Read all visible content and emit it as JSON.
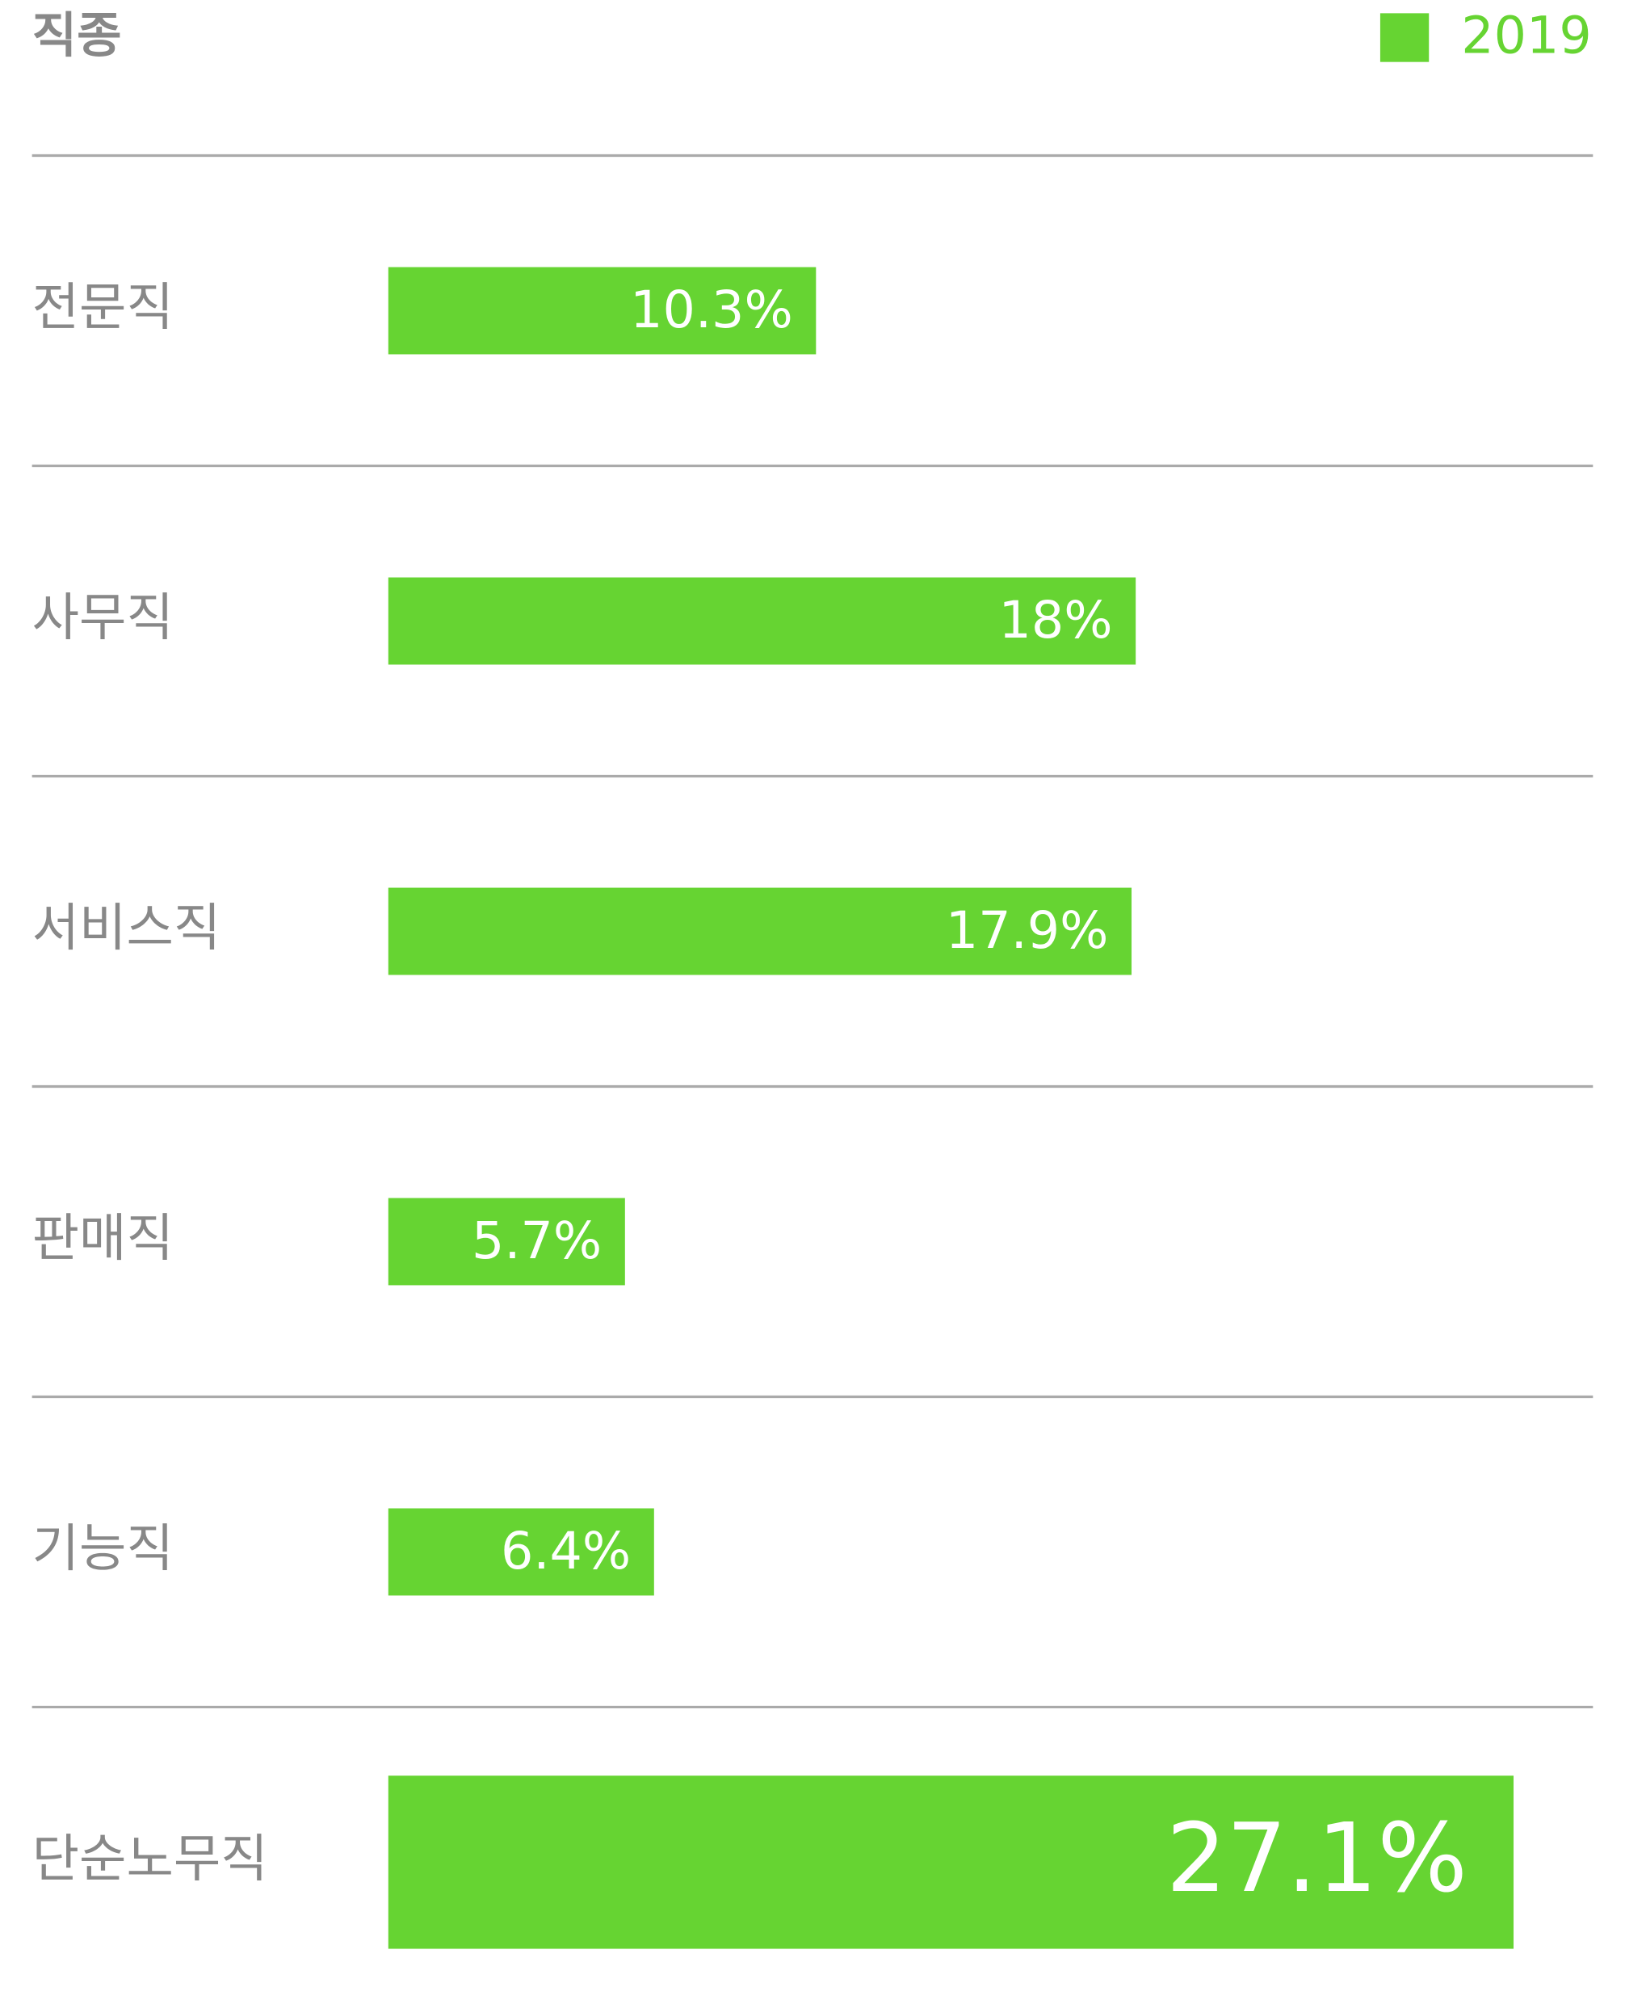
{
  "chart_data": {
    "type": "bar",
    "orientation": "horizontal",
    "title": "직종",
    "categories": [
      "전문직",
      "사무직",
      "서비스직",
      "판매직",
      "기능직",
      "단순노무직"
    ],
    "series": [
      {
        "name": "2019",
        "color": "#66d432",
        "values": [
          10.3,
          18,
          17.9,
          5.7,
          6.4,
          27.1
        ],
        "value_labels": [
          "10.3%",
          "18%",
          "17.9%",
          "5.7%",
          "6.4%",
          "27.1%"
        ]
      }
    ]
  }
}
